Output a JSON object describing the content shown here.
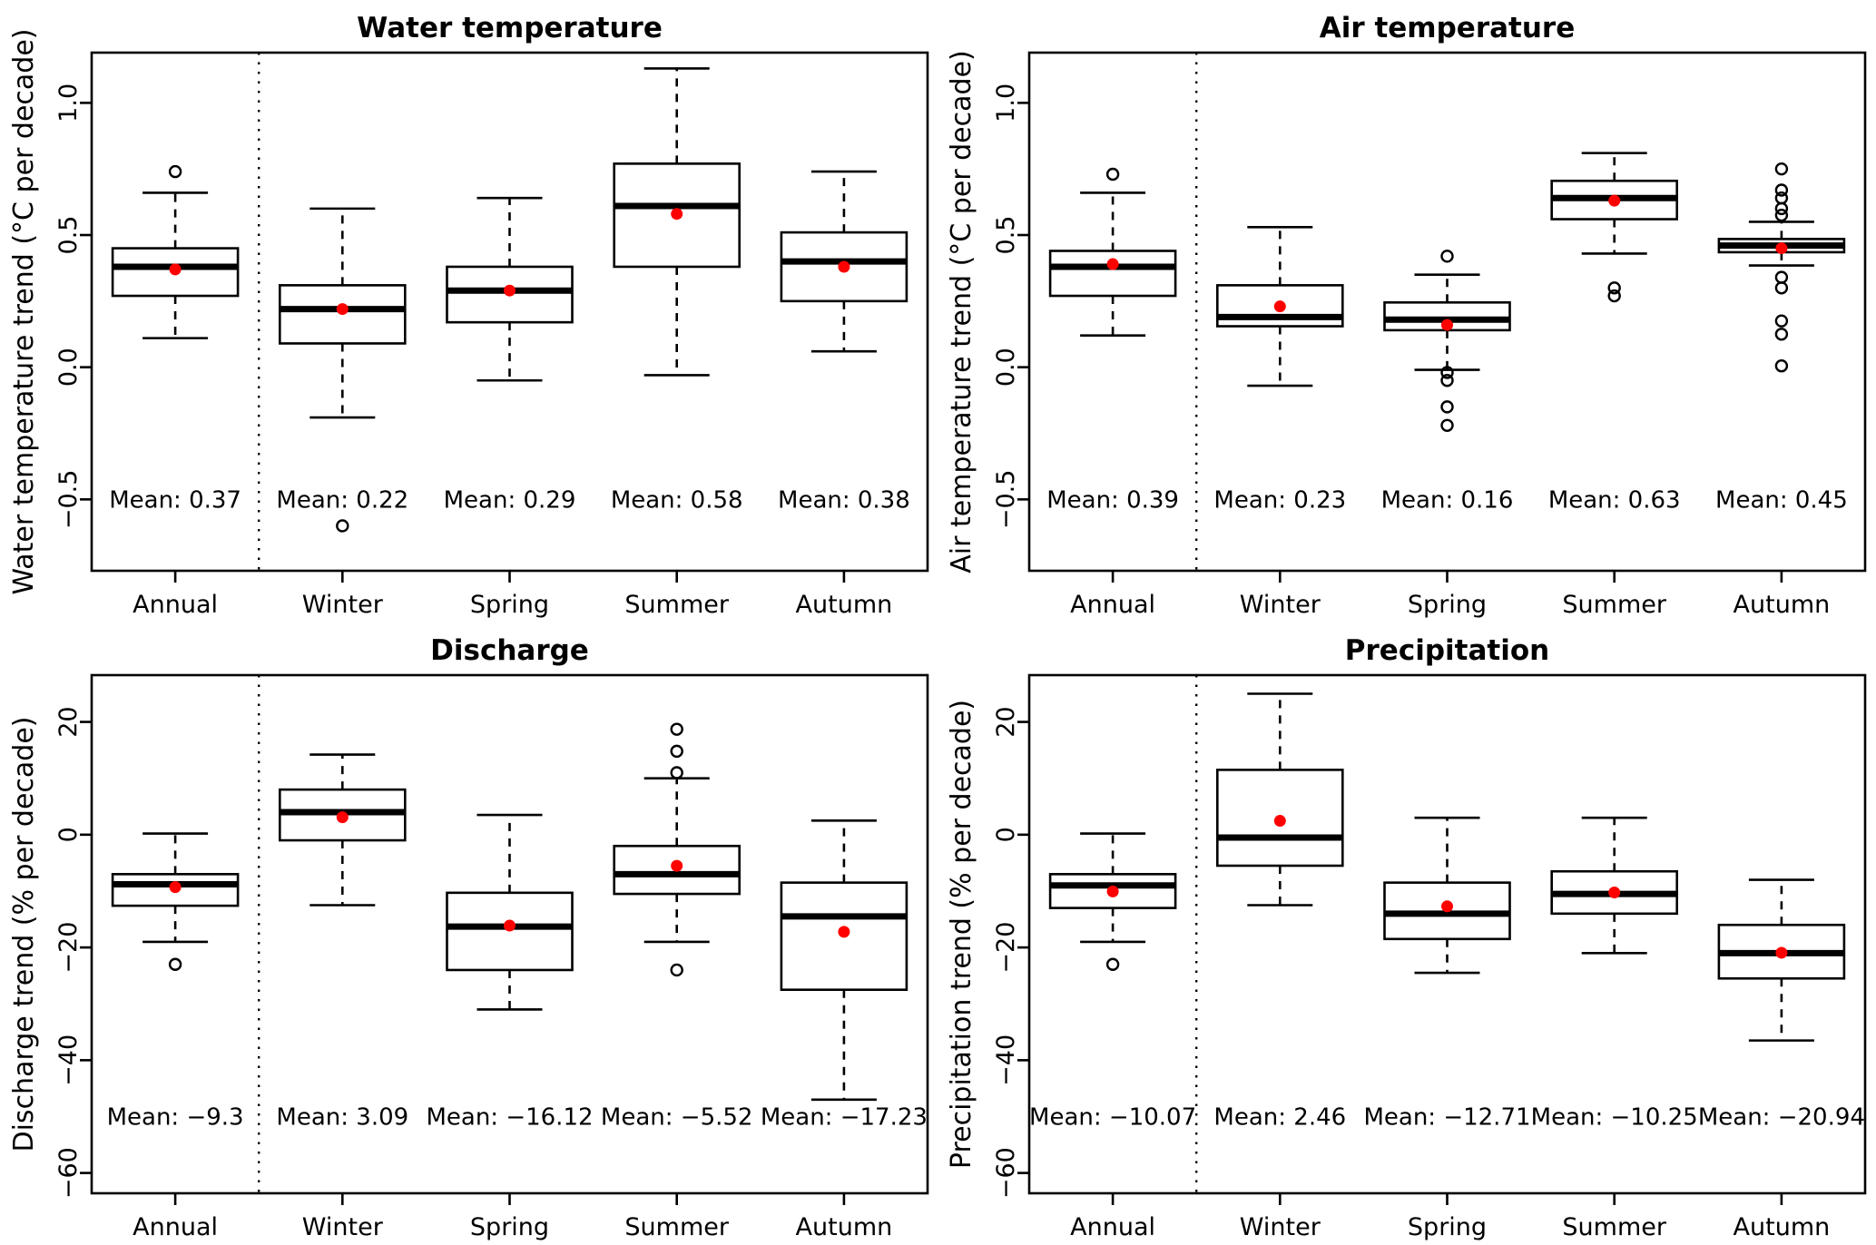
{
  "colors": {
    "line": "#000000",
    "background": "#ffffff",
    "mean_dot": "#ff0000"
  },
  "chart_data": [
    {
      "type": "boxplot",
      "title": "Water temperature",
      "ylabel": "Water temperature trend (°C per decade)",
      "ylim": [
        -0.77,
        1.19
      ],
      "ytick_values": [
        -0.5,
        0.0,
        0.5,
        1.0
      ],
      "ytick_labels": [
        "−0.5",
        "0.0",
        "0.5",
        "1.0"
      ],
      "categories": [
        "Annual",
        "Winter",
        "Spring",
        "Summer",
        "Autumn"
      ],
      "separator_after_category": "Annual",
      "mean_label_value": -0.5,
      "boxes": [
        {
          "category": "Annual",
          "whisker_low": 0.11,
          "q1": 0.27,
          "median": 0.38,
          "q3": 0.45,
          "whisker_high": 0.66,
          "outliers": [
            0.74
          ],
          "mean": 0.37,
          "mean_label": "Mean: 0.37"
        },
        {
          "category": "Winter",
          "whisker_low": -0.19,
          "q1": 0.09,
          "median": 0.22,
          "q3": 0.31,
          "whisker_high": 0.6,
          "outliers": [
            -0.6
          ],
          "mean": 0.22,
          "mean_label": "Mean: 0.22"
        },
        {
          "category": "Spring",
          "whisker_low": -0.05,
          "q1": 0.17,
          "median": 0.29,
          "q3": 0.38,
          "whisker_high": 0.64,
          "outliers": [],
          "mean": 0.29,
          "mean_label": "Mean: 0.29"
        },
        {
          "category": "Summer",
          "whisker_low": -0.03,
          "q1": 0.38,
          "median": 0.61,
          "q3": 0.77,
          "whisker_high": 1.13,
          "outliers": [],
          "mean": 0.58,
          "mean_label": "Mean: 0.58"
        },
        {
          "category": "Autumn",
          "whisker_low": 0.06,
          "q1": 0.25,
          "median": 0.4,
          "q3": 0.51,
          "whisker_high": 0.74,
          "outliers": [],
          "mean": 0.38,
          "mean_label": "Mean: 0.38"
        }
      ]
    },
    {
      "type": "boxplot",
      "title": "Air temperature",
      "ylabel": "Air temperature trend (°C per decade)",
      "ylim": [
        -0.77,
        1.19
      ],
      "ytick_values": [
        -0.5,
        0.0,
        0.5,
        1.0
      ],
      "ytick_labels": [
        "−0.5",
        "0.0",
        "0.5",
        "1.0"
      ],
      "categories": [
        "Annual",
        "Winter",
        "Spring",
        "Summer",
        "Autumn"
      ],
      "separator_after_category": "Annual",
      "mean_label_value": -0.5,
      "boxes": [
        {
          "category": "Annual",
          "whisker_low": 0.12,
          "q1": 0.27,
          "median": 0.38,
          "q3": 0.44,
          "whisker_high": 0.66,
          "outliers": [
            0.73
          ],
          "mean": 0.39,
          "mean_label": "Mean: 0.39"
        },
        {
          "category": "Winter",
          "whisker_low": -0.07,
          "q1": 0.155,
          "median": 0.19,
          "q3": 0.31,
          "whisker_high": 0.53,
          "outliers": [],
          "mean": 0.23,
          "mean_label": "Mean: 0.23"
        },
        {
          "category": "Spring",
          "whisker_low": -0.01,
          "q1": 0.14,
          "median": 0.18,
          "q3": 0.245,
          "whisker_high": 0.35,
          "outliers": [
            0.42,
            -0.02,
            -0.05,
            -0.15,
            -0.22
          ],
          "mean": 0.16,
          "mean_label": "Mean: 0.16"
        },
        {
          "category": "Summer",
          "whisker_low": 0.43,
          "q1": 0.56,
          "median": 0.64,
          "q3": 0.705,
          "whisker_high": 0.81,
          "outliers": [
            0.3,
            0.27
          ],
          "mean": 0.63,
          "mean_label": "Mean: 0.63"
        },
        {
          "category": "Autumn",
          "whisker_low": 0.385,
          "q1": 0.435,
          "median": 0.46,
          "q3": 0.485,
          "whisker_high": 0.55,
          "outliers": [
            0.75,
            0.67,
            0.64,
            0.6,
            0.575,
            0.34,
            0.3,
            0.175,
            0.125,
            0.005
          ],
          "mean": 0.45,
          "mean_label": "Mean: 0.45"
        }
      ]
    },
    {
      "type": "boxplot",
      "title": "Discharge",
      "ylabel": "Discharge trend (% per decade)",
      "ylim": [
        -63.6,
        28.3
      ],
      "ytick_values": [
        -60,
        -40,
        -20,
        0,
        20
      ],
      "ytick_labels": [
        "−60",
        "−40",
        "−20",
        "0",
        "20"
      ],
      "categories": [
        "Annual",
        "Winter",
        "Spring",
        "Summer",
        "Autumn"
      ],
      "separator_after_category": "Annual",
      "mean_label_value": -50,
      "boxes": [
        {
          "category": "Annual",
          "whisker_low": -19,
          "q1": -12.6,
          "median": -8.8,
          "q3": -7,
          "whisker_high": 0.2,
          "outliers": [
            -23
          ],
          "mean": -9.3,
          "mean_label": "Mean: −9.3"
        },
        {
          "category": "Winter",
          "whisker_low": -12.5,
          "q1": -1,
          "median": 4,
          "q3": 8,
          "whisker_high": 14.2,
          "outliers": [],
          "mean": 3.09,
          "mean_label": "Mean: 3.09"
        },
        {
          "category": "Spring",
          "whisker_low": -31,
          "q1": -24,
          "median": -16.3,
          "q3": -10.3,
          "whisker_high": 3.5,
          "outliers": [],
          "mean": -16.12,
          "mean_label": "Mean: −16.12"
        },
        {
          "category": "Summer",
          "whisker_low": -19,
          "q1": -10.5,
          "median": -7,
          "q3": -2,
          "whisker_high": 10,
          "outliers": [
            18.7,
            14.8,
            11,
            -24
          ],
          "mean": -5.52,
          "mean_label": "Mean: −5.52"
        },
        {
          "category": "Autumn",
          "whisker_low": -47,
          "q1": -27.5,
          "median": -14.5,
          "q3": -8.5,
          "whisker_high": 2.5,
          "outliers": [],
          "mean": -17.23,
          "mean_label": "Mean: −17.23"
        }
      ]
    },
    {
      "type": "boxplot",
      "title": "Precipitation",
      "ylabel": "Precipitation trend (% per decade)",
      "ylim": [
        -63.6,
        28.3
      ],
      "ytick_values": [
        -60,
        -40,
        -20,
        0,
        20
      ],
      "ytick_labels": [
        "−60",
        "−40",
        "−20",
        "0",
        "20"
      ],
      "categories": [
        "Annual",
        "Winter",
        "Spring",
        "Summer",
        "Autumn"
      ],
      "separator_after_category": "Annual",
      "mean_label_value": -50,
      "boxes": [
        {
          "category": "Annual",
          "whisker_low": -19,
          "q1": -13,
          "median": -9,
          "q3": -7,
          "whisker_high": 0.2,
          "outliers": [
            -23
          ],
          "mean": -10.07,
          "mean_label": "Mean: −10.07"
        },
        {
          "category": "Winter",
          "whisker_low": -12.5,
          "q1": -5.5,
          "median": -0.5,
          "q3": 11.5,
          "whisker_high": 25,
          "outliers": [],
          "mean": 2.46,
          "mean_label": "Mean: 2.46"
        },
        {
          "category": "Spring",
          "whisker_low": -24.5,
          "q1": -18.5,
          "median": -14,
          "q3": -8.5,
          "whisker_high": 3,
          "outliers": [],
          "mean": -12.71,
          "mean_label": "Mean: −12.71"
        },
        {
          "category": "Summer",
          "whisker_low": -21,
          "q1": -14,
          "median": -10.5,
          "q3": -6.5,
          "whisker_high": 3,
          "outliers": [],
          "mean": -10.25,
          "mean_label": "Mean: −10.25"
        },
        {
          "category": "Autumn",
          "whisker_low": -36.5,
          "q1": -25.5,
          "median": -21,
          "q3": -16,
          "whisker_high": -8,
          "outliers": [],
          "mean": -20.94,
          "mean_label": "Mean: −20.94"
        }
      ]
    }
  ]
}
